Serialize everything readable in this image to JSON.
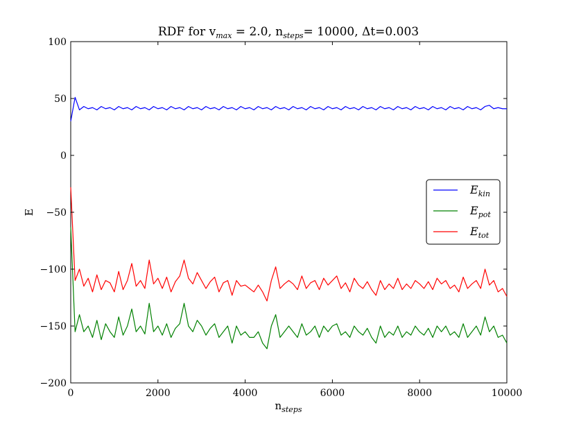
{
  "chart_data": {
    "type": "line",
    "title": {
      "parts": [
        {
          "text": "RDF for v",
          "sub": false
        },
        {
          "text": "max",
          "sub": true
        },
        {
          "text": " = 2.0, n",
          "sub": false
        },
        {
          "text": "steps",
          "sub": true
        },
        {
          "text": "= 10000, Δt=0.003",
          "sub": false
        }
      ]
    },
    "xlabel": {
      "base": "n",
      "sub": "steps"
    },
    "ylabel": "E",
    "xlim": [
      0,
      10000
    ],
    "ylim": [
      -200,
      100
    ],
    "xticks": [
      0,
      2000,
      4000,
      6000,
      8000,
      10000
    ],
    "xtick_labels": [
      "0",
      "2000",
      "4000",
      "6000",
      "8000",
      "10000"
    ],
    "yticks": [
      100,
      50,
      0,
      -50,
      -100,
      -150,
      -200
    ],
    "ytick_labels": [
      "100",
      "50",
      "0",
      "−50",
      "−100",
      "−150",
      "−200"
    ],
    "grid": false,
    "legend_position": "center-right",
    "x": [
      0,
      100,
      200,
      300,
      400,
      500,
      600,
      700,
      800,
      900,
      1000,
      1100,
      1200,
      1300,
      1400,
      1500,
      1600,
      1700,
      1800,
      1900,
      2000,
      2100,
      2200,
      2300,
      2400,
      2500,
      2600,
      2700,
      2800,
      2900,
      3000,
      3100,
      3200,
      3300,
      3400,
      3500,
      3600,
      3700,
      3800,
      3900,
      4000,
      4100,
      4200,
      4300,
      4400,
      4500,
      4600,
      4700,
      4800,
      4900,
      5000,
      5100,
      5200,
      5300,
      5400,
      5500,
      5600,
      5700,
      5800,
      5900,
      6000,
      6100,
      6200,
      6300,
      6400,
      6500,
      6600,
      6700,
      6800,
      6900,
      7000,
      7100,
      7200,
      7300,
      7400,
      7500,
      7600,
      7700,
      7800,
      7900,
      8000,
      8100,
      8200,
      8300,
      8400,
      8500,
      8600,
      8700,
      8800,
      8900,
      9000,
      9100,
      9200,
      9300,
      9400,
      9500,
      9600,
      9700,
      9800,
      9900,
      10000
    ],
    "series": [
      {
        "name": "E_kin",
        "label_base": "E",
        "label_sub": "kin",
        "color": "#0000ff",
        "values": [
          30,
          51,
          40,
          43,
          41,
          42,
          40,
          43,
          41,
          42,
          40,
          43,
          41,
          42,
          40,
          43,
          41,
          42,
          40,
          43,
          41,
          42,
          40,
          43,
          41,
          42,
          40,
          43,
          41,
          42,
          40,
          43,
          41,
          42,
          40,
          43,
          41,
          42,
          40,
          43,
          41,
          42,
          40,
          43,
          41,
          42,
          40,
          43,
          41,
          42,
          40,
          43,
          41,
          42,
          40,
          43,
          41,
          42,
          40,
          43,
          41,
          42,
          40,
          43,
          41,
          42,
          40,
          43,
          41,
          42,
          40,
          43,
          41,
          42,
          40,
          43,
          41,
          42,
          40,
          43,
          41,
          42,
          40,
          43,
          41,
          42,
          40,
          43,
          41,
          42,
          40,
          43,
          41,
          42,
          40,
          43,
          44,
          41,
          42,
          41,
          41
        ]
      },
      {
        "name": "E_pot",
        "label_base": "E",
        "label_sub": "pot",
        "color": "#008000",
        "values": [
          -63,
          -155,
          -140,
          -155,
          -150,
          -160,
          -145,
          -162,
          -148,
          -155,
          -160,
          -142,
          -158,
          -150,
          -135,
          -155,
          -150,
          -157,
          -130,
          -155,
          -150,
          -158,
          -148,
          -160,
          -152,
          -148,
          -130,
          -150,
          -155,
          -145,
          -150,
          -158,
          -152,
          -148,
          -160,
          -155,
          -150,
          -165,
          -150,
          -158,
          -155,
          -160,
          -160,
          -155,
          -165,
          -170,
          -150,
          -140,
          -160,
          -155,
          -150,
          -155,
          -160,
          -148,
          -158,
          -155,
          -150,
          -160,
          -150,
          -155,
          -150,
          -148,
          -158,
          -155,
          -160,
          -150,
          -155,
          -158,
          -152,
          -160,
          -165,
          -150,
          -160,
          -155,
          -158,
          -150,
          -160,
          -155,
          -158,
          -150,
          -155,
          -158,
          -152,
          -160,
          -150,
          -155,
          -150,
          -158,
          -155,
          -160,
          -148,
          -160,
          -155,
          -150,
          -158,
          -142,
          -155,
          -150,
          -160,
          -158,
          -165
        ]
      },
      {
        "name": "E_tot",
        "label_base": "E",
        "label_sub": "tot",
        "color": "#ff0000",
        "values": [
          -28,
          -110,
          -100,
          -115,
          -108,
          -120,
          -105,
          -118,
          -110,
          -112,
          -120,
          -102,
          -118,
          -110,
          -95,
          -115,
          -110,
          -117,
          -92,
          -113,
          -108,
          -117,
          -107,
          -120,
          -111,
          -106,
          -92,
          -108,
          -113,
          -103,
          -110,
          -117,
          -111,
          -107,
          -120,
          -112,
          -110,
          -123,
          -110,
          -115,
          -114,
          -117,
          -120,
          -114,
          -120,
          -128,
          -110,
          -98,
          -117,
          -113,
          -110,
          -113,
          -118,
          -106,
          -117,
          -112,
          -110,
          -118,
          -108,
          -114,
          -110,
          -106,
          -117,
          -112,
          -120,
          -108,
          -114,
          -117,
          -111,
          -118,
          -123,
          -110,
          -118,
          -113,
          -117,
          -108,
          -118,
          -113,
          -117,
          -110,
          -113,
          -117,
          -111,
          -118,
          -108,
          -113,
          -110,
          -117,
          -114,
          -120,
          -107,
          -117,
          -113,
          -110,
          -117,
          -100,
          -114,
          -110,
          -120,
          -117,
          -124
        ]
      }
    ]
  }
}
